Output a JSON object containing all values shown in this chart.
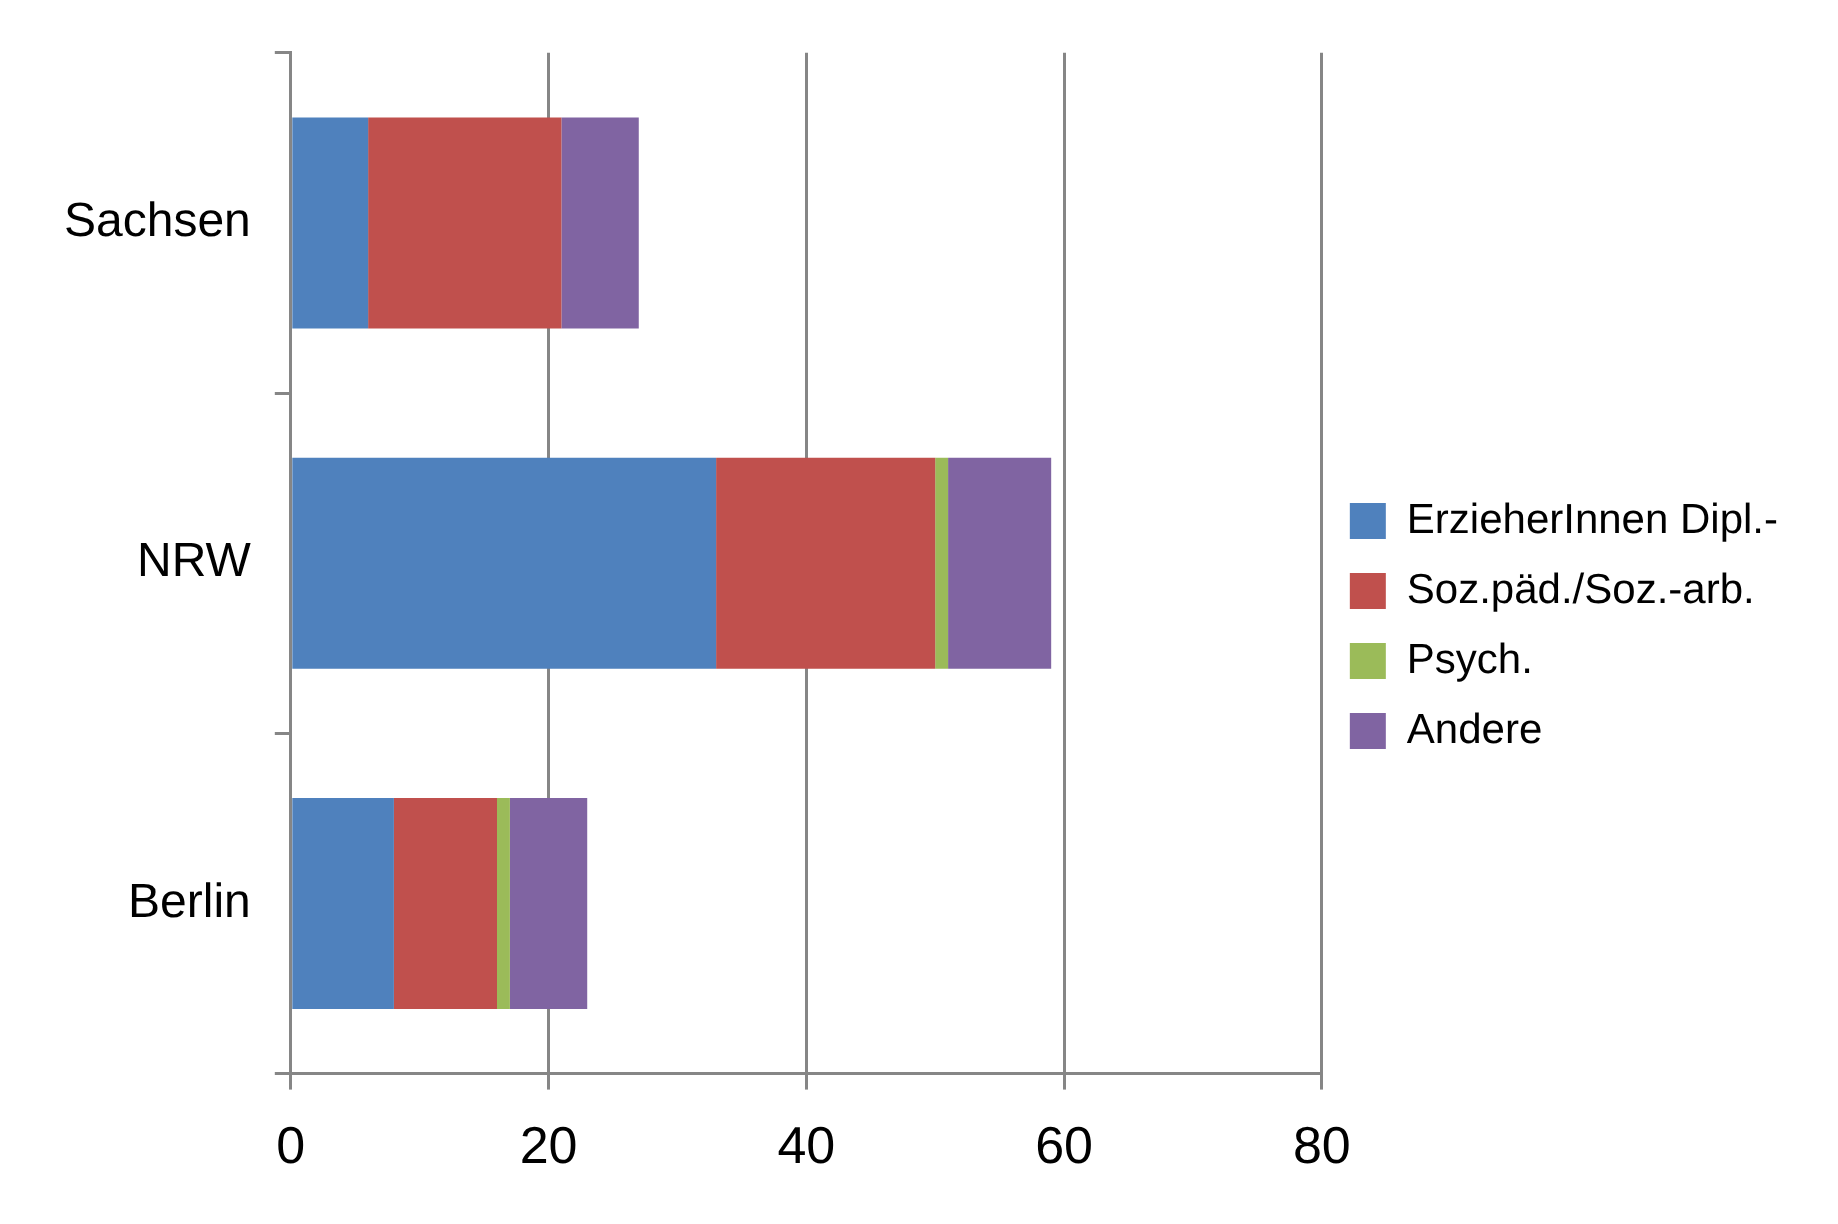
{
  "chart_data": {
    "type": "bar",
    "orientation": "horizontal",
    "stacked": true,
    "categories": [
      "Sachsen",
      "NRW",
      "Berlin"
    ],
    "series": [
      {
        "name": "ErzieherInnen Dipl.-",
        "color": "#4f81bd",
        "values": [
          6,
          33,
          8
        ]
      },
      {
        "name": "Soz.päd./Soz.-arb.",
        "color": "#c0504d",
        "values": [
          15,
          17,
          8
        ]
      },
      {
        "name": "Psych.",
        "color": "#9bbb59",
        "values": [
          0,
          1,
          1
        ]
      },
      {
        "name": "Andere",
        "color": "#8064a2",
        "values": [
          6,
          8,
          6
        ]
      }
    ],
    "xlim": [
      0,
      80
    ],
    "xticks": [
      0,
      20,
      40,
      60,
      80
    ],
    "grid": "x",
    "legend": "right"
  }
}
